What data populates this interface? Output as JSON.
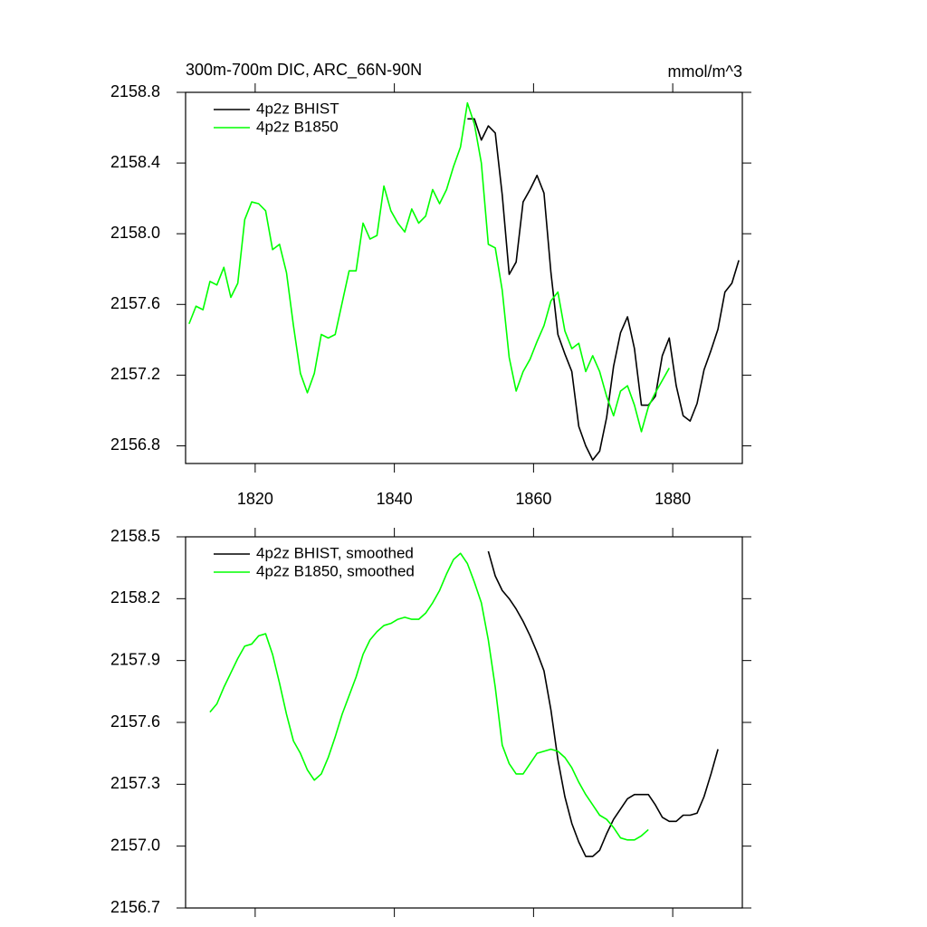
{
  "chart_data": [
    {
      "type": "line",
      "title": "300m-700m DIC, ARC_66N-90N",
      "subtitle": "mmol/m^3",
      "xlim": [
        1810,
        1890
      ],
      "xticks": [
        1820,
        1840,
        1860,
        1880
      ],
      "ylim": [
        2156.7,
        2158.8
      ],
      "yticks": [
        2156.8,
        2157.2,
        2157.6,
        {
          "value": 2158,
          "label": "2158.0"
        },
        2158.4,
        2158.8
      ],
      "legend": "upper left",
      "series": [
        {
          "name": "4p2z BHIST",
          "color": "#000000",
          "x": [
            1850.5,
            1851.5,
            1852.5,
            1853.5,
            1854.5,
            1855.5,
            1856.5,
            1857.5,
            1858.5,
            1859.5,
            1860.5,
            1861.5,
            1862.5,
            1863.5,
            1864.5,
            1865.5,
            1866.5,
            1867.5,
            1868.5,
            1869.5,
            1870.5,
            1871.5,
            1872.5,
            1873.5,
            1874.5,
            1875.5,
            1876.5,
            1877.5,
            1878.5,
            1879.5,
            1880.5,
            1881.5,
            1882.5,
            1883.5,
            1884.5,
            1885.5,
            1886.5,
            1887.5,
            1888.5,
            1889.5
          ],
          "values": [
            2158.65,
            2158.65,
            2158.53,
            2158.61,
            2158.57,
            2158.22,
            2157.77,
            2157.84,
            2158.18,
            2158.25,
            2158.33,
            2158.23,
            2157.78,
            2157.43,
            2157.32,
            2157.22,
            2156.91,
            2156.8,
            2156.72,
            2156.77,
            2156.96,
            2157.25,
            2157.44,
            2157.53,
            2157.35,
            2157.03,
            2157.03,
            2157.08,
            2157.31,
            2157.41,
            2157.14,
            2156.97,
            2156.94,
            2157.04,
            2157.23,
            2157.34,
            2157.46,
            2157.67,
            2157.72,
            2157.85
          ]
        },
        {
          "name": "4p2z B1850",
          "color": "#00ff00",
          "x": [
            1810.5,
            1811.5,
            1812.5,
            1813.5,
            1814.5,
            1815.5,
            1816.5,
            1817.5,
            1818.5,
            1819.5,
            1820.5,
            1821.5,
            1822.5,
            1823.5,
            1824.5,
            1825.5,
            1826.5,
            1827.5,
            1828.5,
            1829.5,
            1830.5,
            1831.5,
            1832.5,
            1833.5,
            1834.5,
            1835.5,
            1836.5,
            1837.5,
            1838.5,
            1839.5,
            1840.5,
            1841.5,
            1842.5,
            1843.5,
            1844.5,
            1845.5,
            1846.5,
            1847.5,
            1848.5,
            1849.5,
            1850.5,
            1851.5,
            1852.5,
            1853.5,
            1854.5,
            1855.5,
            1856.5,
            1857.5,
            1858.5,
            1859.5,
            1860.5,
            1861.5,
            1862.5,
            1863.5,
            1864.5,
            1865.5,
            1866.5,
            1867.5,
            1868.5,
            1869.5,
            1870.5,
            1871.5,
            1872.5,
            1873.5,
            1874.5,
            1875.5,
            1876.5,
            1877.5,
            1878.5,
            1879.5
          ],
          "values": [
            2157.49,
            2157.59,
            2157.57,
            2157.73,
            2157.71,
            2157.81,
            2157.64,
            2157.72,
            2158.08,
            2158.18,
            2158.17,
            2158.13,
            2157.91,
            2157.94,
            2157.78,
            2157.48,
            2157.21,
            2157.1,
            2157.21,
            2157.43,
            2157.41,
            2157.43,
            2157.61,
            2157.79,
            2157.79,
            2158.06,
            2157.97,
            2157.99,
            2158.27,
            2158.13,
            2158.06,
            2158.01,
            2158.14,
            2158.06,
            2158.1,
            2158.25,
            2158.17,
            2158.25,
            2158.38,
            2158.49,
            2158.74,
            2158.62,
            2158.4,
            2157.94,
            2157.92,
            2157.68,
            2157.3,
            2157.11,
            2157.22,
            2157.29,
            2157.39,
            2157.48,
            2157.62,
            2157.67,
            2157.45,
            2157.35,
            2157.38,
            2157.22,
            2157.31,
            2157.22,
            2157.08,
            2156.97,
            2157.11,
            2157.14,
            2157.03,
            2156.88,
            2157.02,
            2157.1,
            2157.17,
            2157.24
          ]
        }
      ]
    },
    {
      "type": "line",
      "xlim": [
        1810,
        1890
      ],
      "xticks": [
        1820,
        1840,
        1860,
        1880
      ],
      "xtick_labels": false,
      "ylim": [
        2156.7,
        2158.5
      ],
      "yticks": [
        2156.7,
        {
          "value": 2157,
          "label": "2157.0"
        },
        2157.3,
        2157.6,
        2157.9,
        2158.2,
        2158.5
      ],
      "legend": "upper left",
      "series": [
        {
          "name": "4p2z BHIST, smoothed",
          "color": "#000000",
          "x": [
            1853.5,
            1854.5,
            1855.5,
            1856.5,
            1857.5,
            1858.5,
            1859.5,
            1860.5,
            1861.5,
            1862.5,
            1863.5,
            1864.5,
            1865.5,
            1866.5,
            1867.5,
            1868.5,
            1869.5,
            1870.5,
            1871.5,
            1872.5,
            1873.5,
            1874.5,
            1875.5,
            1876.5,
            1877.5,
            1878.5,
            1879.5,
            1880.5,
            1881.5,
            1882.5,
            1883.5,
            1884.5,
            1885.5,
            1886.5
          ],
          "values": [
            2158.43,
            2158.31,
            2158.24,
            2158.2,
            2158.15,
            2158.09,
            2158.02,
            2157.94,
            2157.85,
            2157.66,
            2157.42,
            2157.24,
            2157.11,
            2157.02,
            2156.95,
            2156.95,
            2156.98,
            2157.06,
            2157.13,
            2157.18,
            2157.23,
            2157.25,
            2157.25,
            2157.25,
            2157.2,
            2157.14,
            2157.12,
            2157.12,
            2157.15,
            2157.15,
            2157.16,
            2157.24,
            2157.35,
            2157.47
          ]
        },
        {
          "name": "4p2z B1850, smoothed",
          "color": "#00ff00",
          "x": [
            1813.5,
            1814.5,
            1815.5,
            1816.5,
            1817.5,
            1818.5,
            1819.5,
            1820.5,
            1821.5,
            1822.5,
            1823.5,
            1824.5,
            1825.5,
            1826.5,
            1827.5,
            1828.5,
            1829.5,
            1830.5,
            1831.5,
            1832.5,
            1833.5,
            1834.5,
            1835.5,
            1836.5,
            1837.5,
            1838.5,
            1839.5,
            1840.5,
            1841.5,
            1842.5,
            1843.5,
            1844.5,
            1845.5,
            1846.5,
            1847.5,
            1848.5,
            1849.5,
            1850.5,
            1851.5,
            1852.5,
            1853.5,
            1854.5,
            1855.5,
            1856.5,
            1857.5,
            1858.5,
            1859.5,
            1860.5,
            1861.5,
            1862.5,
            1863.5,
            1864.5,
            1865.5,
            1866.5,
            1867.5,
            1868.5,
            1869.5,
            1870.5,
            1871.5,
            1872.5,
            1873.5,
            1874.5,
            1875.5,
            1876.5
          ],
          "values": [
            2157.65,
            2157.69,
            2157.77,
            2157.84,
            2157.91,
            2157.97,
            2157.98,
            2158.02,
            2158.03,
            2157.93,
            2157.79,
            2157.64,
            2157.51,
            2157.45,
            2157.37,
            2157.32,
            2157.35,
            2157.43,
            2157.53,
            2157.64,
            2157.73,
            2157.82,
            2157.93,
            2158.0,
            2158.04,
            2158.07,
            2158.08,
            2158.1,
            2158.11,
            2158.1,
            2158.1,
            2158.13,
            2158.18,
            2158.24,
            2158.32,
            2158.39,
            2158.42,
            2158.37,
            2158.28,
            2158.18,
            2158.0,
            2157.77,
            2157.49,
            2157.4,
            2157.35,
            2157.35,
            2157.4,
            2157.45,
            2157.46,
            2157.47,
            2157.46,
            2157.43,
            2157.38,
            2157.31,
            2157.25,
            2157.2,
            2157.15,
            2157.13,
            2157.09,
            2157.04,
            2157.03,
            2157.03,
            2157.05,
            2157.08
          ]
        }
      ]
    }
  ]
}
